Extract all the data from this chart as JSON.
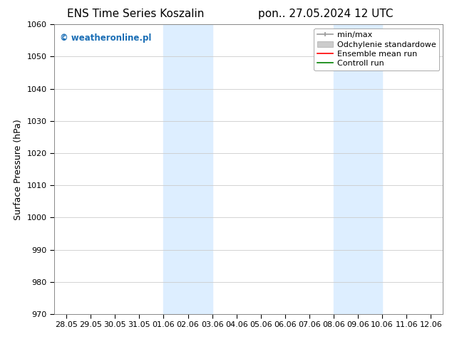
{
  "title_left": "ENS Time Series Koszalin",
  "title_right": "pon.. 27.05.2024 12 UTC",
  "ylabel": "Surface Pressure (hPa)",
  "ylim": [
    970,
    1060
  ],
  "yticks": [
    970,
    980,
    990,
    1000,
    1010,
    1020,
    1030,
    1040,
    1050,
    1060
  ],
  "x_tick_labels": [
    "28.05",
    "29.05",
    "30.05",
    "31.05",
    "01.06",
    "02.06",
    "03.06",
    "04.06",
    "05.06",
    "06.06",
    "07.06",
    "08.06",
    "09.06",
    "10.06",
    "11.06",
    "12.06"
  ],
  "x_tick_positions": [
    0,
    1,
    2,
    3,
    4,
    5,
    6,
    7,
    8,
    9,
    10,
    11,
    12,
    13,
    14,
    15
  ],
  "shaded_regions": [
    {
      "x_start": 4,
      "x_end": 6
    },
    {
      "x_start": 11,
      "x_end": 13
    }
  ],
  "shaded_color": "#ddeeff",
  "background_color": "#ffffff",
  "watermark": "© weatheronline.pl",
  "watermark_color": "#1a6eb5",
  "legend_items": [
    {
      "label": "min/max",
      "color": "#999999",
      "lw": 1.2,
      "style": "line_with_caps"
    },
    {
      "label": "Odchylenie standardowe",
      "color": "#cccccc",
      "lw": 7,
      "style": "thick"
    },
    {
      "label": "Ensemble mean run",
      "color": "#ff0000",
      "lw": 1.2,
      "style": "line"
    },
    {
      "label": "Controll run",
      "color": "#008000",
      "lw": 1.2,
      "style": "line"
    }
  ],
  "grid_color": "#cccccc",
  "tick_label_fontsize": 8,
  "axis_label_fontsize": 9,
  "title_fontsize": 11,
  "legend_fontsize": 8
}
